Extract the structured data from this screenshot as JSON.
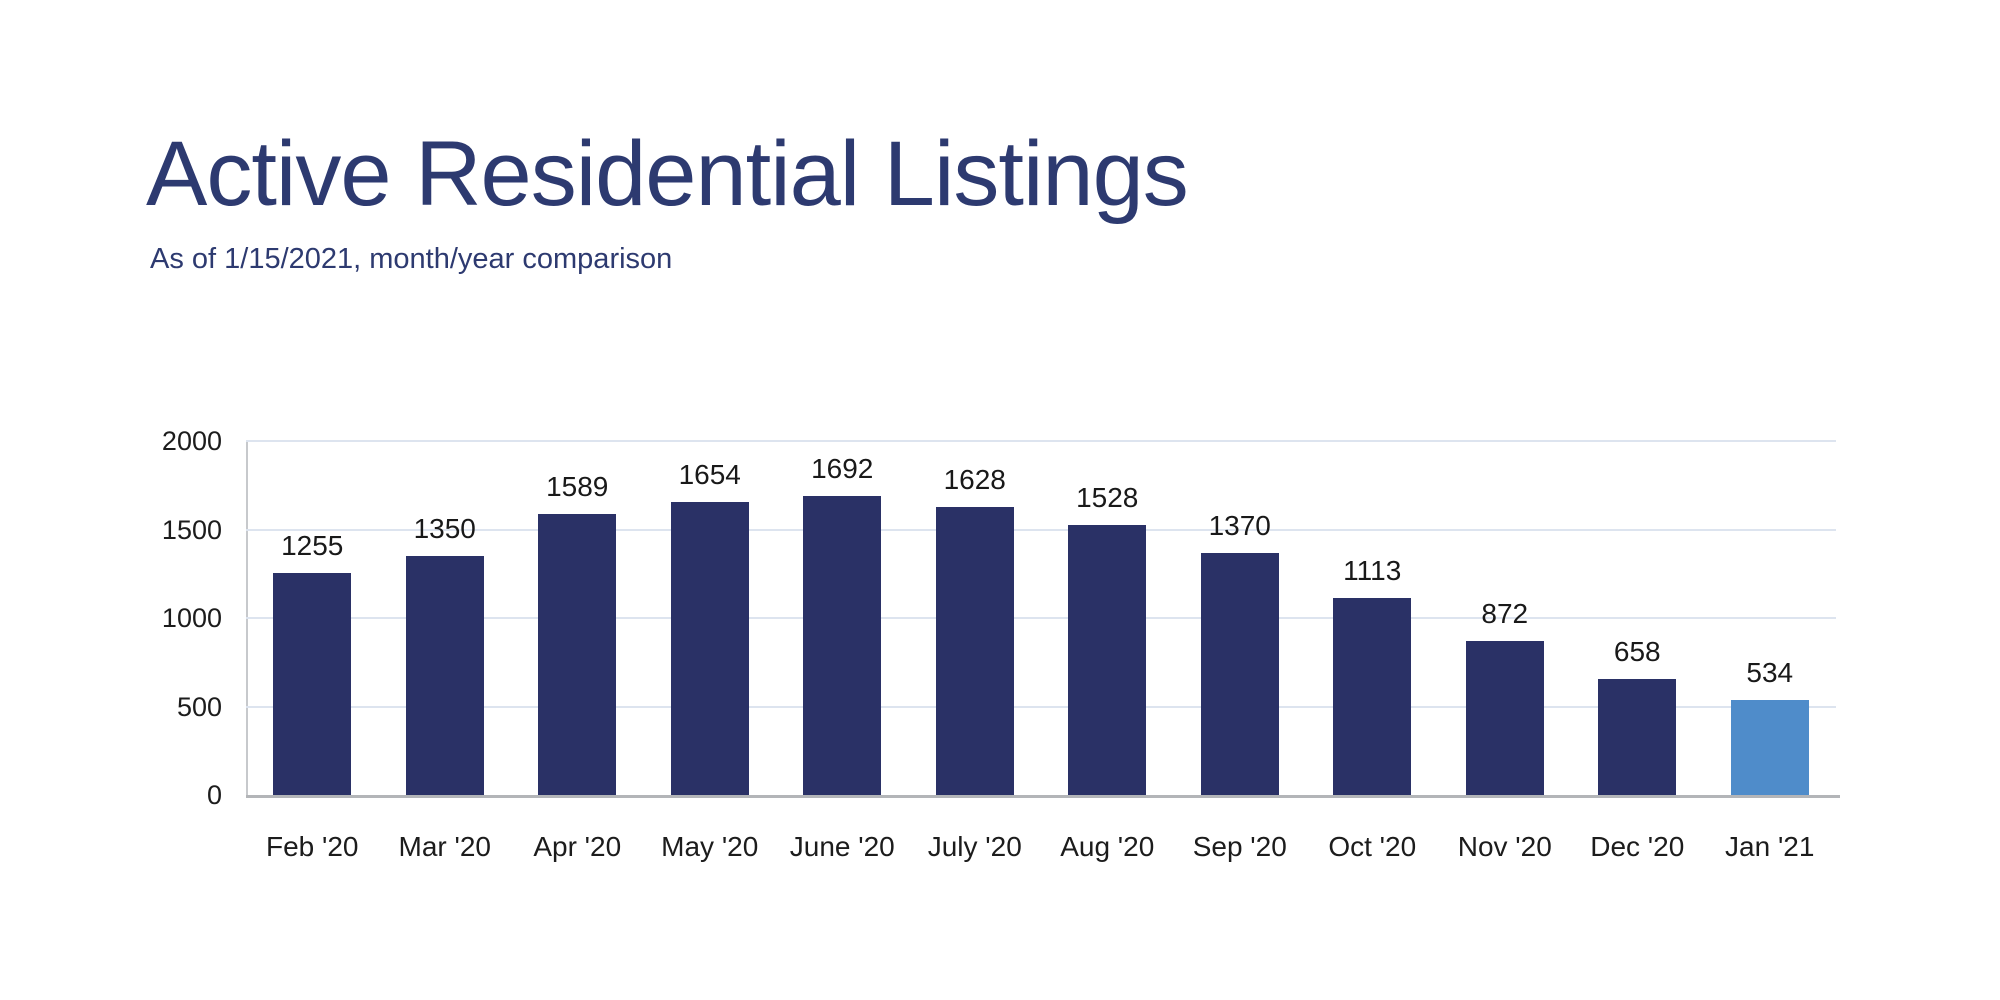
{
  "header": {
    "title": "Active Residential Listings",
    "subtitle": "As of 1/15/2021, month/year comparison",
    "title_color": "#2d3a70"
  },
  "chart_data": {
    "type": "bar",
    "title": "Active Residential Listings",
    "subtitle": "As of 1/15/2021, month/year comparison",
    "categories": [
      "Feb '20",
      "Mar '20",
      "Apr '20",
      "May '20",
      "June '20",
      "July '20",
      "Aug '20",
      "Sep '20",
      "Oct '20",
      "Nov '20",
      "Dec '20",
      "Jan '21"
    ],
    "values": [
      1255,
      1350,
      1589,
      1654,
      1692,
      1628,
      1528,
      1370,
      1113,
      872,
      658,
      534
    ],
    "data_labels_shown": true,
    "xlabel": "",
    "ylabel": "",
    "ylim": [
      0,
      2000
    ],
    "yticks": [
      0,
      500,
      1000,
      1500,
      2000
    ],
    "grid": true,
    "legend": "none",
    "bar_color": "#2a3166",
    "highlight_bar_color": "#4f8cca",
    "highlight_index": 11,
    "gridline_color": "#dde4ef",
    "axis_line_color": "#b3b5b8",
    "label_color": "#191919"
  }
}
